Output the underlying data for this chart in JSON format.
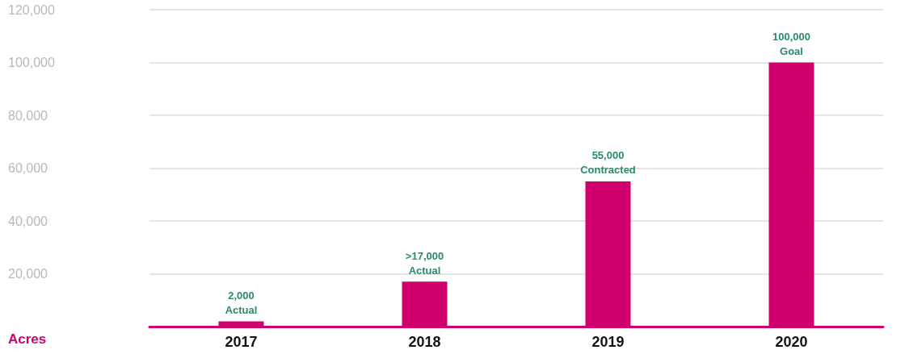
{
  "chart_data": {
    "type": "bar",
    "ylabel": "Acres",
    "categories": [
      "2017",
      "2018",
      "2019",
      "2020"
    ],
    "values": [
      2000,
      17000,
      55000,
      100000
    ],
    "value_labels": [
      "2,000\nActual",
      ">17,000\nActual",
      "55,000\nContracted",
      "100,000\nGoal"
    ],
    "color": "#d1006f",
    "ylim": [
      0,
      120000
    ],
    "yticks": [
      {
        "value": 0,
        "label": null
      },
      {
        "value": 20000,
        "label": "20,000"
      },
      {
        "value": 40000,
        "label": "40,000"
      },
      {
        "value": 60000,
        "label": "60,000"
      },
      {
        "value": 80000,
        "label": "80,000"
      },
      {
        "value": 100000,
        "label": "100,000"
      },
      {
        "value": 120000,
        "label": "120,000"
      }
    ],
    "grid": "y"
  }
}
